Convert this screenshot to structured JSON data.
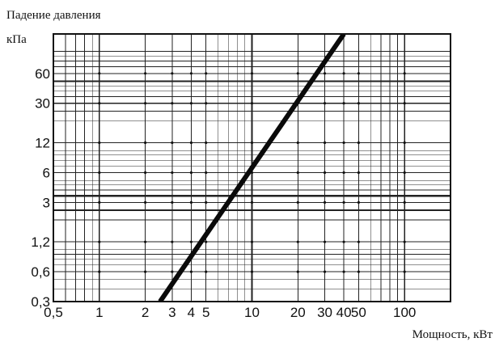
{
  "chart_data": {
    "type": "line",
    "title": "",
    "xlabel": "Мощность, кВт",
    "ylabel_line1": "Падение давления",
    "ylabel_line2": "кПа",
    "x_scale": "log",
    "y_scale": "log",
    "xlim": [
      0.5,
      200
    ],
    "ylim": [
      0.3,
      150
    ],
    "grid": true,
    "legend": "none",
    "x_ticks": [
      {
        "value": 0.5,
        "label": "0,5"
      },
      {
        "value": 1,
        "label": "1"
      },
      {
        "value": 2,
        "label": "2"
      },
      {
        "value": 3,
        "label": "3"
      },
      {
        "value": 4,
        "label": "4"
      },
      {
        "value": 5,
        "label": "5"
      },
      {
        "value": 10,
        "label": "10"
      },
      {
        "value": 20,
        "label": "20"
      },
      {
        "value": 30,
        "label": "30"
      },
      {
        "value": 40,
        "label": "40"
      },
      {
        "value": 50,
        "label": "50"
      },
      {
        "value": 100,
        "label": "100"
      }
    ],
    "y_ticks": [
      {
        "value": 0.3,
        "label": "0,3"
      },
      {
        "value": 0.6,
        "label": "0,6"
      },
      {
        "value": 1.2,
        "label": "1,2"
      },
      {
        "value": 3,
        "label": "3"
      },
      {
        "value": 6,
        "label": "6"
      },
      {
        "value": 12,
        "label": "12"
      },
      {
        "value": 30,
        "label": "30"
      },
      {
        "value": 60,
        "label": "60"
      }
    ],
    "x_grid_values": [
      0.5,
      0.6,
      0.7,
      0.8,
      0.9,
      1,
      2,
      3,
      4,
      5,
      6,
      7,
      8,
      9,
      10,
      20,
      30,
      40,
      50,
      60,
      70,
      80,
      90,
      100
    ],
    "y_grid_values": [
      0.3,
      0.4,
      0.5,
      0.6,
      0.7,
      0.8,
      0.9,
      1,
      1.2,
      2,
      2.5,
      3,
      3.5,
      4,
      4.5,
      5,
      6,
      7,
      8,
      9,
      10,
      12,
      20,
      25,
      30,
      35,
      40,
      45,
      50,
      60,
      70,
      80,
      90,
      100
    ],
    "y_heavy_grid_values": [
      2.5,
      3.5,
      50
    ],
    "series": [
      {
        "points": [
          [
            2.5,
            0.3
          ],
          [
            40,
            150
          ]
        ],
        "color": "#0a0a0a"
      }
    ],
    "colors": {
      "grid": "#222222",
      "line": "#0a0a0a",
      "background": "#ffffff"
    }
  }
}
